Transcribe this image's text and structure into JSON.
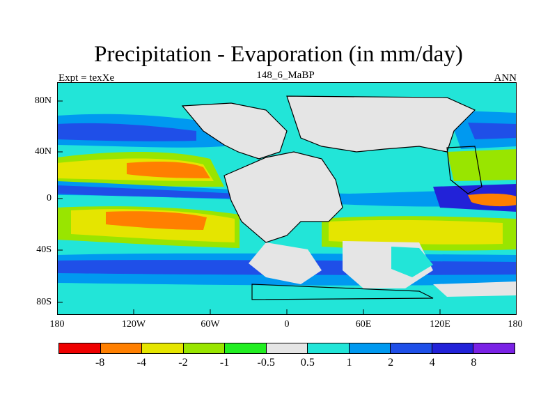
{
  "title": "Precipitation - Evaporation (in mm/day)",
  "subtitle_left": "Expt = texXe",
  "subtitle_center": "148_6_MaBP",
  "subtitle_right": "ANN",
  "y_ticks": [
    "80N",
    "40N",
    "0",
    "40S",
    "80S"
  ],
  "x_ticks": [
    "180",
    "120W",
    "60W",
    "0",
    "60E",
    "120E",
    "180"
  ],
  "colorbar": {
    "labels": [
      "-8",
      "-4",
      "-2",
      "-1",
      "-0.5",
      "0.5",
      "1",
      "2",
      "4",
      "8"
    ],
    "colors": [
      "#ee0000",
      "#ff7f00",
      "#e5e500",
      "#99e500",
      "#22ee22",
      "#e5e5e5",
      "#22e5d8",
      "#0099f0",
      "#1f4fe8",
      "#2222d8",
      "#7a22e5"
    ]
  },
  "colors": {
    "land": "#e5e5e5",
    "ocean_wet": "#22e5d8"
  }
}
